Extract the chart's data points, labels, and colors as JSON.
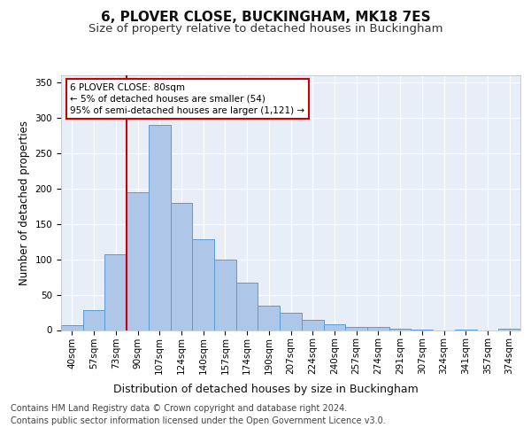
{
  "title1": "6, PLOVER CLOSE, BUCKINGHAM, MK18 7ES",
  "title2": "Size of property relative to detached houses in Buckingham",
  "xlabel": "Distribution of detached houses by size in Buckingham",
  "ylabel": "Number of detached properties",
  "categories": [
    "40sqm",
    "57sqm",
    "73sqm",
    "90sqm",
    "107sqm",
    "124sqm",
    "140sqm",
    "157sqm",
    "174sqm",
    "190sqm",
    "207sqm",
    "224sqm",
    "240sqm",
    "257sqm",
    "274sqm",
    "291sqm",
    "307sqm",
    "324sqm",
    "341sqm",
    "357sqm",
    "374sqm"
  ],
  "values": [
    7,
    28,
    107,
    195,
    290,
    180,
    128,
    100,
    67,
    35,
    25,
    15,
    8,
    5,
    4,
    2,
    1,
    0,
    1,
    0,
    2
  ],
  "bar_color": "#aec6e8",
  "bar_edge_color": "#5b9bd5",
  "redline_x": 2.5,
  "annotation_text": "6 PLOVER CLOSE: 80sqm\n← 5% of detached houses are smaller (54)\n95% of semi-detached houses are larger (1,121) →",
  "annotation_box_color": "#ffffff",
  "annotation_box_edge": "#cc0000",
  "redline_color": "#cc0000",
  "ylim": [
    0,
    360
  ],
  "yticks": [
    0,
    50,
    100,
    150,
    200,
    250,
    300,
    350
  ],
  "footer1": "Contains HM Land Registry data © Crown copyright and database right 2024.",
  "footer2": "Contains public sector information licensed under the Open Government Licence v3.0.",
  "background_color": "#e8eef8",
  "grid_color": "#ffffff",
  "title1_fontsize": 11,
  "title2_fontsize": 9.5,
  "xlabel_fontsize": 9,
  "ylabel_fontsize": 8.5,
  "tick_fontsize": 7.5,
  "footer_fontsize": 7
}
